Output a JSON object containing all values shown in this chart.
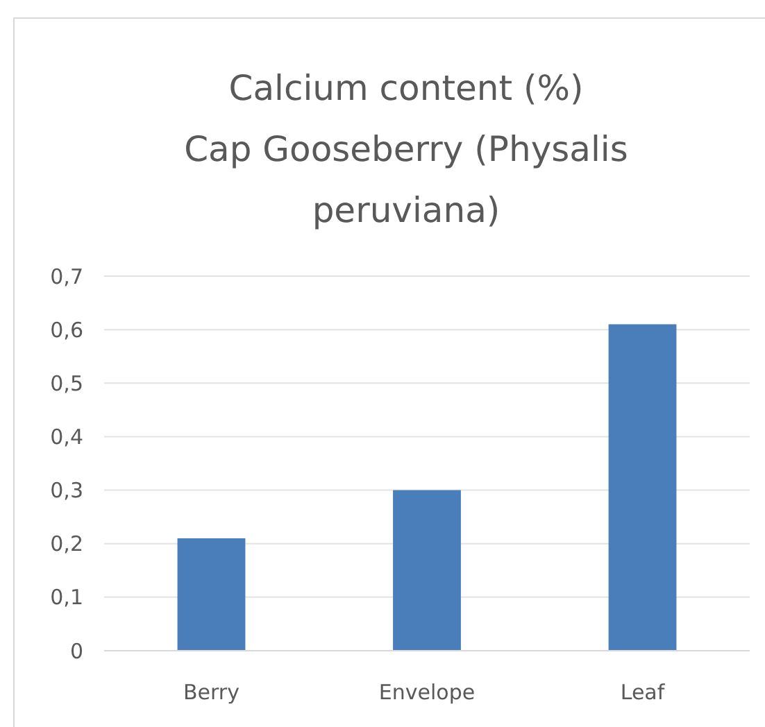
{
  "chart_data": {
    "type": "bar",
    "title": "Calcium content (%)\nCap Gooseberry (Physalis\nperuviana)",
    "categories": [
      "Berry",
      "Envelope",
      "Leaf"
    ],
    "values": [
      0.21,
      0.3,
      0.61
    ],
    "color": "#4a7ebb",
    "ylim": [
      0,
      0.7
    ],
    "yticks": [
      0,
      {
        "value": 0.1,
        "label": "0,1"
      },
      {
        "value": 0.2,
        "label": "0,2"
      },
      {
        "value": 0.3,
        "label": "0,3"
      },
      {
        "value": 0.4,
        "label": "0,4"
      },
      {
        "value": 0.5,
        "label": "0,5"
      },
      {
        "value": 0.6,
        "label": "0,6"
      },
      {
        "value": 0.7,
        "label": "0,7"
      }
    ],
    "grid": true
  }
}
